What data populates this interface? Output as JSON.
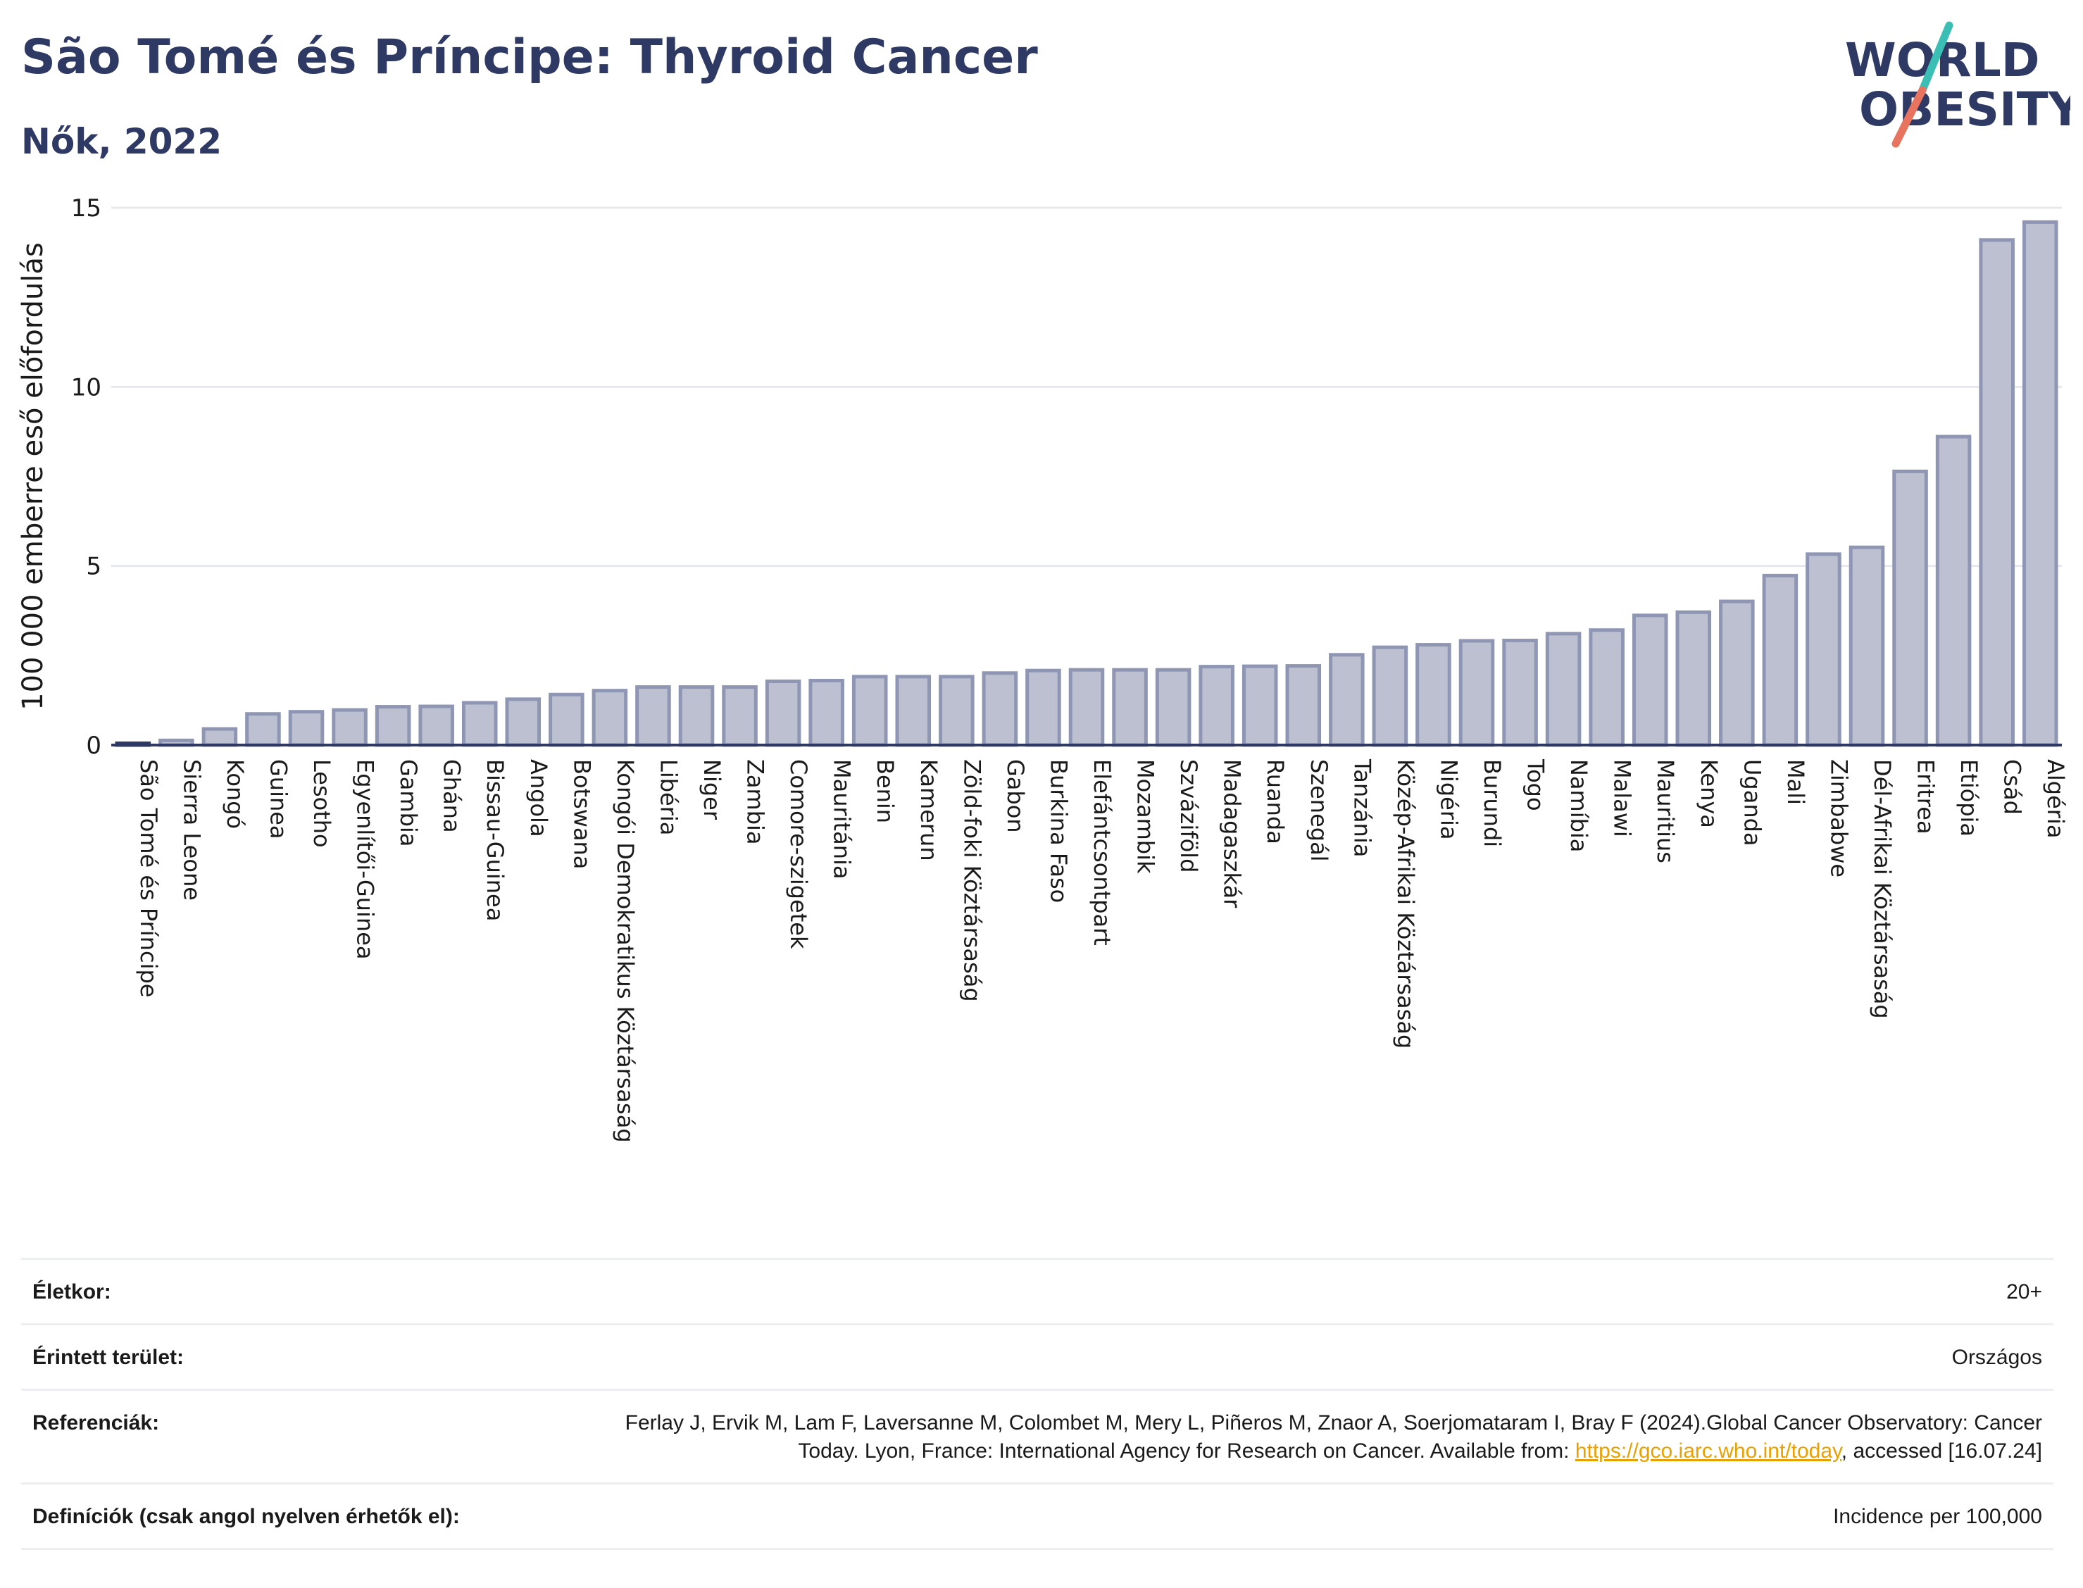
{
  "header": {
    "title": "São Tomé és Príncipe: Thyroid Cancer",
    "subtitle": "Nők, 2022"
  },
  "logo": {
    "line1": "WORLD",
    "line2": "OBESITY",
    "colors": {
      "text": "#2e3a63",
      "slash_top": "#3bbfb5",
      "slash_bottom": "#e8735f"
    }
  },
  "colors": {
    "bar_fill": "#bcc0d0",
    "bar_stroke": "#8f96b3",
    "highlight": "#2e3a63",
    "grid": "#e6e8ee",
    "axis": "#2e3a63"
  },
  "chart_data": {
    "type": "bar",
    "ylabel": "100 000 emberre eső előfordulás",
    "xlabel": "",
    "ylim": [
      0,
      15
    ],
    "yticks": [
      0,
      5,
      10,
      15
    ],
    "grid": true,
    "highlight_category": "São Tomé és Príncipe",
    "categories": [
      "São Tomé és Príncipe",
      "Sierra Leone",
      "Kongó",
      "Guinea",
      "Lesotho",
      "Egyenlítői-Guinea",
      "Gambia",
      "Ghána",
      "Bissau-Guinea",
      "Angola",
      "Botswana",
      "Kongói Demokratikus Köztársaság",
      "Libéria",
      "Niger",
      "Zambia",
      "Comore-szigetek",
      "Mauritánia",
      "Benin",
      "Kamerun",
      "Zöld-foki Köztársaság",
      "Gabon",
      "Burkina Faso",
      "Elefántcsontpart",
      "Mozambik",
      "Szváziföld",
      "Madagaszkár",
      "Ruanda",
      "Szenegál",
      "Tanzánia",
      "Közép-Afrikai Köztársaság",
      "Nigéria",
      "Burundi",
      "Togo",
      "Namíbia",
      "Malawi",
      "Mauritius",
      "Kenya",
      "Uganda",
      "Mali",
      "Zimbabwe",
      "Dél-Afrikai Köztársaság",
      "Eritrea",
      "Etiópia",
      "Csád",
      "Algéria"
    ],
    "values": [
      0.05,
      0.13,
      0.45,
      0.87,
      0.93,
      0.98,
      1.07,
      1.08,
      1.18,
      1.28,
      1.41,
      1.52,
      1.62,
      1.62,
      1.62,
      1.78,
      1.8,
      1.91,
      1.91,
      1.91,
      2.01,
      2.08,
      2.1,
      2.1,
      2.1,
      2.19,
      2.2,
      2.21,
      2.52,
      2.73,
      2.8,
      2.91,
      2.92,
      3.11,
      3.21,
      3.62,
      3.71,
      4.01,
      4.73,
      5.33,
      5.52,
      7.64,
      8.61,
      14.1,
      14.6
    ]
  },
  "info": {
    "rows": [
      {
        "label": "Életkor:",
        "value": "20+"
      },
      {
        "label": "Érintett terület:",
        "value": "Országos"
      },
      {
        "label": "Referenciák:",
        "value_pre": "Ferlay J, Ervik M, Lam F, Laversanne M, Colombet M, Mery L, Piñeros M, Znaor A, Soerjomataram I, Bray F (2024).Global Cancer Observatory: Cancer Today. Lyon, France: International Agency for Research on Cancer. Available from: ",
        "link": "https://gco.iarc.who.int/today",
        "value_post": ", accessed [16.07.24]"
      },
      {
        "label": "Definíciók (csak angol nyelven érhetők el):",
        "value": "Incidence per 100,000"
      }
    ]
  }
}
